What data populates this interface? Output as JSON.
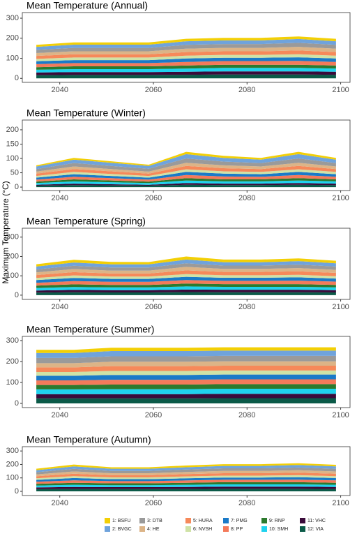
{
  "chart_data": [
    {
      "type": "area",
      "title": "Mean Temperature (Annual)",
      "x": [
        2035,
        2043,
        2051,
        2059,
        2067,
        2075,
        2083,
        2091,
        2099
      ],
      "xlim": [
        2032,
        2102
      ],
      "xticks": [
        2040,
        2060,
        2080,
        2100
      ],
      "ylim": [
        -20,
        328
      ],
      "yticks": [
        0,
        100,
        200,
        300
      ],
      "series": [
        {
          "name": "1: BSFU",
          "color": "#f3cf05",
          "values": [
            10,
            11,
            11,
            11,
            12,
            13,
            13,
            13,
            12
          ]
        },
        {
          "name": "2: BVGC",
          "color": "#6fa3dc",
          "values": [
            15,
            16,
            16,
            16,
            18,
            18,
            18,
            19,
            18
          ]
        },
        {
          "name": "3: DTB",
          "color": "#9a9a9a",
          "values": [
            16,
            17,
            17,
            17,
            19,
            19,
            19,
            20,
            19
          ]
        },
        {
          "name": "4: HE",
          "color": "#dcb487",
          "values": [
            14,
            15,
            15,
            15,
            17,
            17,
            17,
            18,
            17
          ]
        },
        {
          "name": "5: HURA",
          "color": "#f6895a",
          "values": [
            15,
            16,
            16,
            16,
            18,
            18,
            18,
            19,
            18
          ]
        },
        {
          "name": "6: NVSH",
          "color": "#cfe2a6",
          "values": [
            12,
            13,
            13,
            13,
            14,
            14,
            14,
            15,
            14
          ]
        },
        {
          "name": "7: PMG",
          "color": "#1a7ac8",
          "values": [
            14,
            15,
            15,
            15,
            17,
            17,
            17,
            18,
            17
          ]
        },
        {
          "name": "8: PP",
          "color": "#f47a5a",
          "values": [
            15,
            16,
            16,
            16,
            18,
            18,
            18,
            19,
            18
          ]
        },
        {
          "name": "9: RNP",
          "color": "#2c7a2e",
          "values": [
            13,
            14,
            14,
            14,
            15,
            16,
            16,
            16,
            15
          ]
        },
        {
          "name": "10: SMH",
          "color": "#1fd2ee",
          "values": [
            14,
            15,
            15,
            15,
            16,
            17,
            17,
            17,
            16
          ]
        },
        {
          "name": "11: VHC",
          "color": "#3a0a3a",
          "values": [
            13,
            14,
            14,
            14,
            15,
            16,
            16,
            16,
            15
          ]
        },
        {
          "name": "12: VIA",
          "color": "#0b5a48",
          "values": [
            16,
            17,
            17,
            17,
            18,
            19,
            19,
            19,
            18
          ]
        }
      ]
    },
    {
      "type": "area",
      "title": "Mean Temperature (Winter)",
      "x": [
        2035,
        2043,
        2051,
        2059,
        2067,
        2075,
        2083,
        2091,
        2099
      ],
      "xlim": [
        2032,
        2102
      ],
      "xticks": [
        2040,
        2060,
        2080,
        2100
      ],
      "ylim": [
        -12,
        234
      ],
      "yticks": [
        0,
        50,
        100,
        150,
        200
      ],
      "series": [
        {
          "name": "1: BSFU",
          "color": "#f3cf05",
          "values": [
            4,
            6,
            5,
            4,
            8,
            7,
            6,
            8,
            6
          ]
        },
        {
          "name": "2: BVGC",
          "color": "#6fa3dc",
          "values": [
            9,
            12,
            11,
            10,
            15,
            13,
            12,
            15,
            12
          ]
        },
        {
          "name": "3: DTB",
          "color": "#9a9a9a",
          "values": [
            9,
            12,
            11,
            10,
            15,
            13,
            12,
            15,
            12
          ]
        },
        {
          "name": "4: HE",
          "color": "#dcb487",
          "values": [
            7,
            9,
            8,
            7,
            11,
            10,
            9,
            11,
            9
          ]
        },
        {
          "name": "5: HURA",
          "color": "#f6895a",
          "values": [
            8,
            10,
            9,
            8,
            12,
            11,
            10,
            12,
            10
          ]
        },
        {
          "name": "6: NVSH",
          "color": "#cfe2a6",
          "values": [
            6,
            8,
            7,
            6,
            9,
            8,
            8,
            9,
            8
          ]
        },
        {
          "name": "7: PMG",
          "color": "#1a7ac8",
          "values": [
            7,
            9,
            8,
            7,
            11,
            10,
            9,
            11,
            9
          ]
        },
        {
          "name": "8: PP",
          "color": "#f47a5a",
          "values": [
            7,
            9,
            8,
            7,
            11,
            10,
            9,
            11,
            9
          ]
        },
        {
          "name": "9: RNP",
          "color": "#2c7a2e",
          "values": [
            5,
            7,
            6,
            5,
            8,
            7,
            7,
            8,
            7
          ]
        },
        {
          "name": "10: SMH",
          "color": "#1fd2ee",
          "values": [
            6,
            8,
            7,
            6,
            9,
            8,
            8,
            9,
            8
          ]
        },
        {
          "name": "11: VHC",
          "color": "#3a0a3a",
          "values": [
            3,
            5,
            4,
            3,
            6,
            5,
            5,
            6,
            5
          ]
        },
        {
          "name": "12: VIA",
          "color": "#0b5a48",
          "values": [
            5,
            7,
            6,
            5,
            8,
            7,
            7,
            8,
            7
          ]
        }
      ]
    },
    {
      "type": "area",
      "title": "Mean Temperature (Spring)",
      "ylabel": "Maximum Temperature (°C)",
      "x": [
        2035,
        2043,
        2051,
        2059,
        2067,
        2075,
        2083,
        2091,
        2099
      ],
      "xlim": [
        2032,
        2102
      ],
      "xticks": [
        2040,
        2060,
        2080,
        2100
      ],
      "ylim": [
        -22,
        346
      ],
      "yticks": [
        0,
        100,
        200,
        300
      ],
      "series": [
        {
          "name": "1: BSFU",
          "color": "#f3cf05",
          "values": [
            12,
            14,
            13,
            12,
            16,
            14,
            14,
            14,
            13
          ]
        },
        {
          "name": "2: BVGC",
          "color": "#6fa3dc",
          "values": [
            15,
            17,
            16,
            16,
            19,
            17,
            17,
            18,
            17
          ]
        },
        {
          "name": "3: DTB",
          "color": "#9a9a9a",
          "values": [
            15,
            17,
            16,
            16,
            19,
            17,
            17,
            18,
            17
          ]
        },
        {
          "name": "4: HE",
          "color": "#dcb487",
          "values": [
            14,
            16,
            15,
            15,
            18,
            16,
            16,
            17,
            16
          ]
        },
        {
          "name": "5: HURA",
          "color": "#f6895a",
          "values": [
            15,
            17,
            16,
            16,
            19,
            17,
            17,
            18,
            17
          ]
        },
        {
          "name": "6: NVSH",
          "color": "#cfe2a6",
          "values": [
            11,
            13,
            12,
            12,
            14,
            13,
            13,
            13,
            12
          ]
        },
        {
          "name": "7: PMG",
          "color": "#1a7ac8",
          "values": [
            14,
            16,
            15,
            15,
            17,
            16,
            16,
            17,
            16
          ]
        },
        {
          "name": "8: PP",
          "color": "#f47a5a",
          "values": [
            15,
            17,
            16,
            16,
            18,
            17,
            17,
            18,
            17
          ]
        },
        {
          "name": "9: RNP",
          "color": "#2c7a2e",
          "values": [
            12,
            14,
            13,
            13,
            15,
            14,
            14,
            14,
            13
          ]
        },
        {
          "name": "10: SMH",
          "color": "#1fd2ee",
          "values": [
            13,
            15,
            14,
            14,
            16,
            15,
            15,
            15,
            14
          ]
        },
        {
          "name": "11: VHC",
          "color": "#3a0a3a",
          "values": [
            11,
            12,
            12,
            12,
            13,
            13,
            13,
            13,
            12
          ]
        },
        {
          "name": "12: VIA",
          "color": "#0b5a48",
          "values": [
            13,
            15,
            14,
            14,
            16,
            15,
            15,
            15,
            14
          ]
        }
      ]
    },
    {
      "type": "area",
      "title": "Mean Temperature (Summer)",
      "x": [
        2035,
        2043,
        2051,
        2059,
        2067,
        2075,
        2083,
        2091,
        2099
      ],
      "xlim": [
        2032,
        2102
      ],
      "xticks": [
        2040,
        2060,
        2080,
        2100
      ],
      "ylim": [
        -20,
        320
      ],
      "yticks": [
        0,
        100,
        200,
        300
      ],
      "series": [
        {
          "name": "1: BSFU",
          "color": "#f3cf05",
          "values": [
            15,
            15,
            16,
            16,
            16,
            16,
            16,
            16,
            16
          ]
        },
        {
          "name": "2: BVGC",
          "color": "#6fa3dc",
          "values": [
            24,
            24,
            25,
            25,
            25,
            25,
            25,
            25,
            25
          ]
        },
        {
          "name": "3: DTB",
          "color": "#9a9a9a",
          "values": [
            25,
            25,
            26,
            26,
            26,
            26,
            26,
            26,
            26
          ]
        },
        {
          "name": "4: HE",
          "color": "#dcb487",
          "values": [
            20,
            20,
            21,
            21,
            21,
            21,
            21,
            21,
            21
          ]
        },
        {
          "name": "5: HURA",
          "color": "#f6895a",
          "values": [
            22,
            22,
            23,
            23,
            23,
            23,
            23,
            23,
            23
          ]
        },
        {
          "name": "6: NVSH",
          "color": "#cfe2a6",
          "values": [
            18,
            18,
            19,
            19,
            19,
            19,
            19,
            19,
            19
          ]
        },
        {
          "name": "7: PMG",
          "color": "#1a7ac8",
          "values": [
            22,
            22,
            23,
            23,
            23,
            23,
            23,
            23,
            23
          ]
        },
        {
          "name": "8: PP",
          "color": "#f47a5a",
          "values": [
            22,
            22,
            23,
            23,
            23,
            23,
            23,
            23,
            23
          ]
        },
        {
          "name": "9: RNP",
          "color": "#2c7a2e",
          "values": [
            21,
            21,
            22,
            22,
            22,
            22,
            22,
            22,
            22
          ]
        },
        {
          "name": "10: SMH",
          "color": "#1fd2ee",
          "values": [
            23,
            23,
            24,
            24,
            24,
            24,
            24,
            24,
            24
          ]
        },
        {
          "name": "11: VHC",
          "color": "#3a0a3a",
          "values": [
            20,
            20,
            20,
            20,
            20,
            21,
            21,
            21,
            21
          ]
        },
        {
          "name": "12: VIA",
          "color": "#0b5a48",
          "values": [
            24,
            24,
            24,
            24,
            24,
            25,
            25,
            25,
            25
          ]
        }
      ]
    },
    {
      "type": "area",
      "title": "Mean Temperature (Autumn)",
      "x": [
        2035,
        2043,
        2051,
        2059,
        2067,
        2075,
        2083,
        2091,
        2099
      ],
      "xlim": [
        2032,
        2102
      ],
      "xticks": [
        2040,
        2060,
        2080,
        2100
      ],
      "ylim": [
        -31,
        332
      ],
      "yticks": [
        0,
        100,
        200,
        300
      ],
      "series": [
        {
          "name": "1: BSFU",
          "color": "#f3cf05",
          "values": [
            11,
            14,
            11,
            11,
            13,
            13,
            13,
            13,
            12
          ]
        },
        {
          "name": "2: BVGC",
          "color": "#6fa3dc",
          "values": [
            15,
            18,
            16,
            16,
            17,
            18,
            18,
            19,
            18
          ]
        },
        {
          "name": "3: DTB",
          "color": "#9a9a9a",
          "values": [
            16,
            19,
            17,
            17,
            18,
            19,
            19,
            20,
            19
          ]
        },
        {
          "name": "4: HE",
          "color": "#dcb487",
          "values": [
            14,
            17,
            15,
            15,
            16,
            17,
            17,
            18,
            17
          ]
        },
        {
          "name": "5: HURA",
          "color": "#f6895a",
          "values": [
            15,
            18,
            16,
            16,
            17,
            18,
            18,
            19,
            18
          ]
        },
        {
          "name": "6: NVSH",
          "color": "#cfe2a6",
          "values": [
            12,
            14,
            13,
            13,
            14,
            14,
            14,
            15,
            14
          ]
        },
        {
          "name": "7: PMG",
          "color": "#1a7ac8",
          "values": [
            14,
            17,
            15,
            15,
            16,
            17,
            17,
            18,
            17
          ]
        },
        {
          "name": "8: PP",
          "color": "#f47a5a",
          "values": [
            15,
            18,
            16,
            16,
            17,
            18,
            18,
            19,
            18
          ]
        },
        {
          "name": "9: RNP",
          "color": "#2c7a2e",
          "values": [
            13,
            15,
            14,
            14,
            15,
            16,
            16,
            16,
            15
          ]
        },
        {
          "name": "10: SMH",
          "color": "#1fd2ee",
          "values": [
            14,
            16,
            15,
            15,
            16,
            17,
            17,
            17,
            16
          ]
        },
        {
          "name": "11: VHC",
          "color": "#3a0a3a",
          "values": [
            13,
            15,
            14,
            14,
            15,
            16,
            16,
            16,
            15
          ]
        },
        {
          "name": "12: VIA",
          "color": "#0b5a48",
          "values": [
            16,
            18,
            17,
            17,
            18,
            19,
            19,
            19,
            18
          ]
        }
      ]
    }
  ]
}
